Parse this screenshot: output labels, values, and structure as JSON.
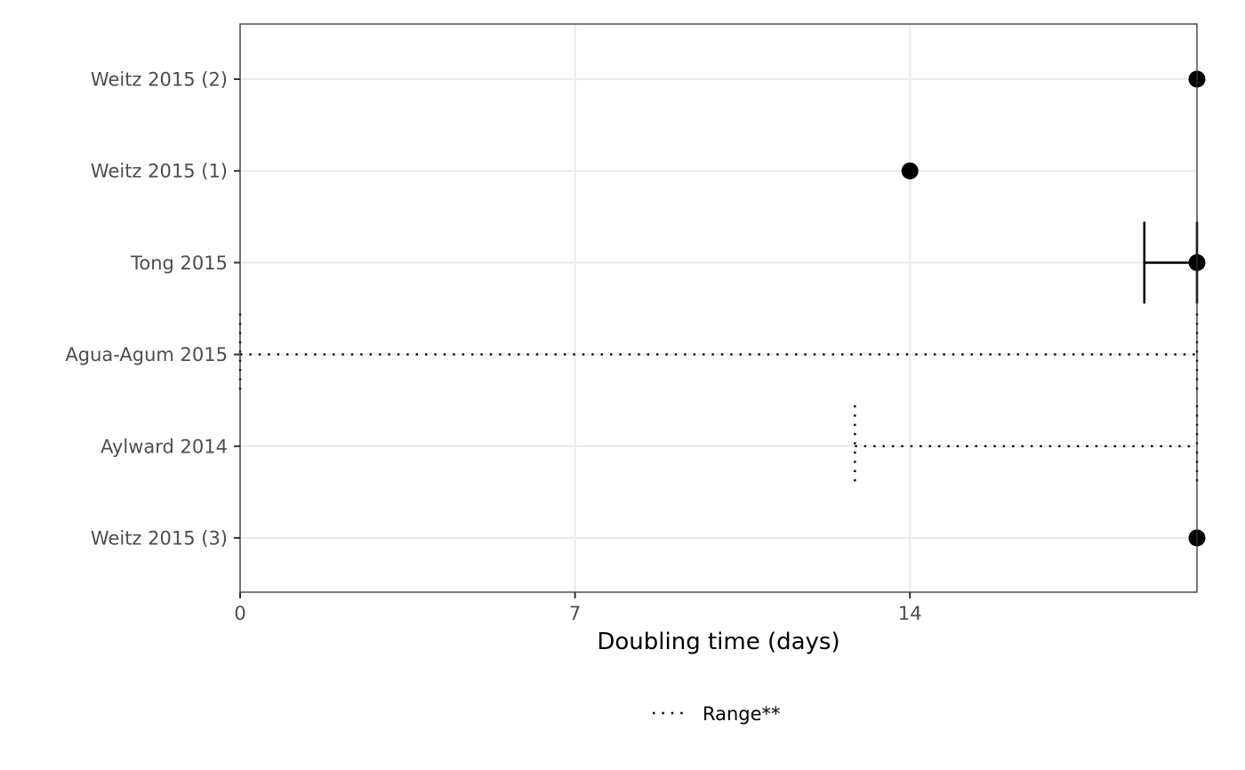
{
  "chart_data": {
    "type": "scatter",
    "xlabel": "Doubling time (days)",
    "ylabel": "",
    "xlim": [
      0,
      20
    ],
    "x_ticks": [
      "0",
      "7",
      "14"
    ],
    "grid": true,
    "legend_position": "bottom",
    "legend": [
      {
        "label": "Range**",
        "linetype": "dotted"
      }
    ],
    "categories": [
      "Weitz 2015 (2)",
      "Weitz 2015 (1)",
      "Tong 2015",
      "Agua-Agum 2015",
      "Aylward 2014",
      "Weitz 2015 (3)"
    ],
    "points": [
      {
        "study": "Weitz 2015 (2)",
        "x": 20
      },
      {
        "study": "Weitz 2015 (1)",
        "x": 14
      },
      {
        "study": "Tong 2015",
        "x": 20
      },
      {
        "study": "Weitz 2015 (3)",
        "x": 20
      }
    ],
    "intervals": [
      {
        "study": "Tong 2015",
        "low": 18.9,
        "high": 20,
        "linetype": "solid"
      },
      {
        "study": "Agua-Agum 2015",
        "low": 0,
        "high": 20,
        "linetype": "dotted"
      },
      {
        "study": "Aylward 2014",
        "low": 12.85,
        "high": 20,
        "linetype": "dotted"
      }
    ],
    "colors": {
      "points": "#000000",
      "grid": "#ebebeb",
      "panel_border": "#333333",
      "tick_text": "#4d4d4d"
    }
  }
}
